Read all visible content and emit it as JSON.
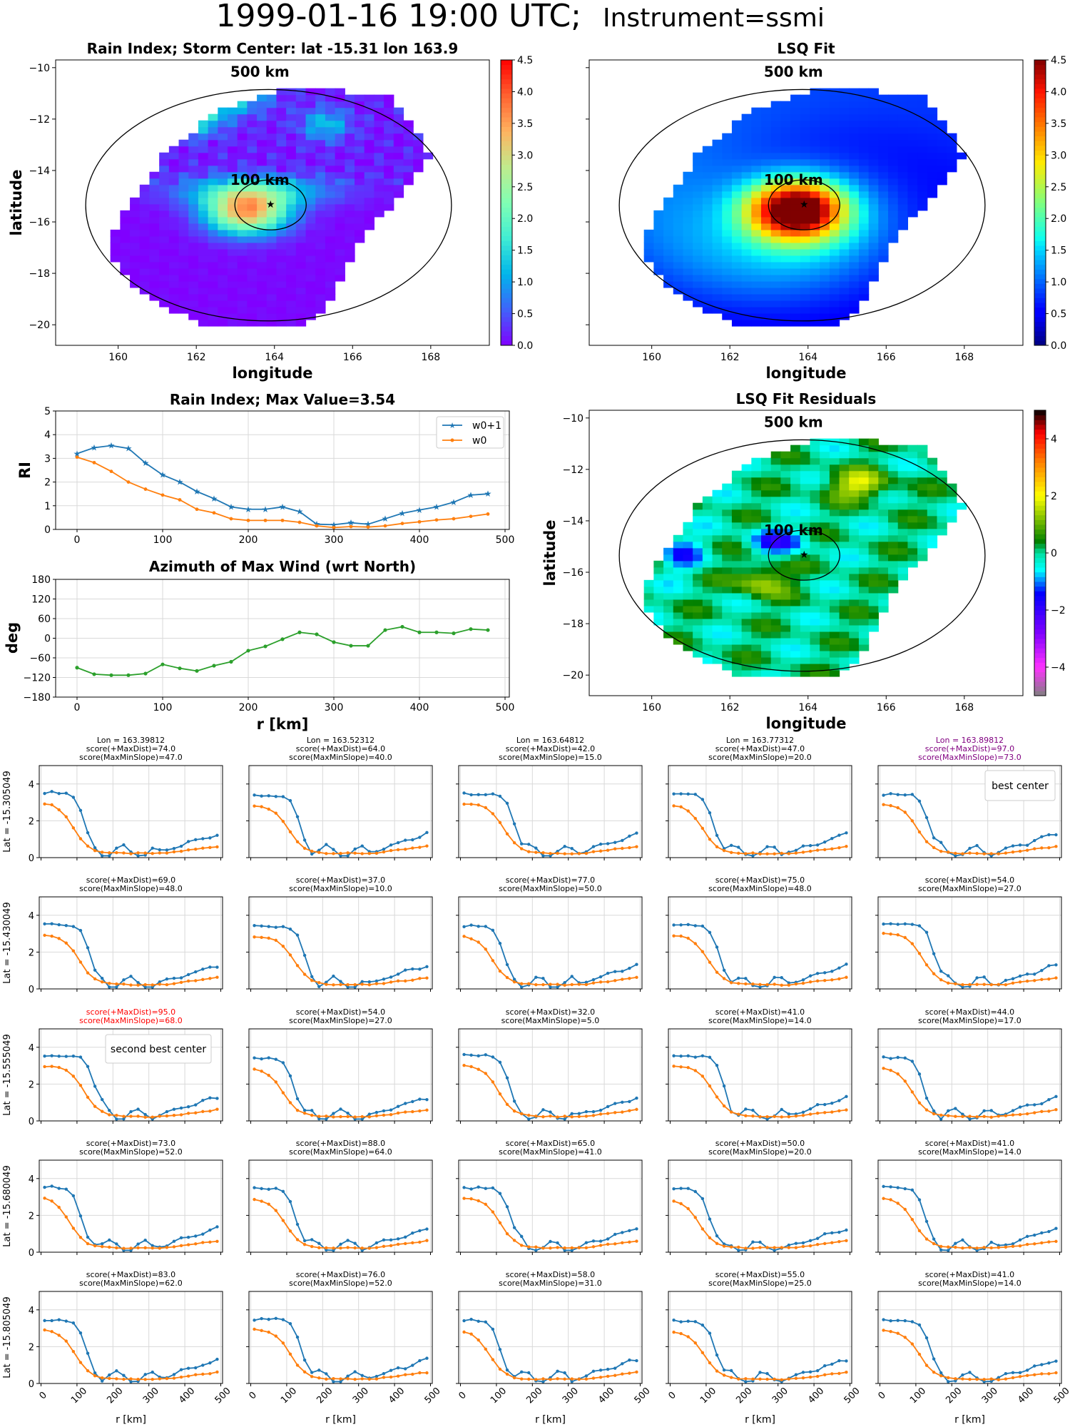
{
  "suptitle": {
    "main": "1999-01-16 19:00 UTC;",
    "instrument": "Instrument=ssmi"
  },
  "colors": {
    "w0p1": "#1f77b4",
    "w0": "#ff7f0e",
    "azimuth": "#2ca02c",
    "best": "#800080",
    "second": "#ff0000",
    "grid": "#d9d9d9"
  },
  "maps": [
    {
      "id": "rain",
      "title": "Rain Index; Storm Center: lat -15.31 lon 163.9",
      "xlabel": "longitude",
      "ylabel": "latitude",
      "xticks": [
        "160",
        "162",
        "164",
        "166",
        "168"
      ],
      "yticks": [
        "−10",
        "−12",
        "−14",
        "−16",
        "−18",
        "−20"
      ],
      "xlim": [
        158.4,
        169.5
      ],
      "ylim": [
        -20.8,
        -9.7
      ],
      "colormap": "rainbow",
      "cbar_ticks": [
        "0.0",
        "0.5",
        "1.0",
        "1.5",
        "2.0",
        "2.5",
        "3.0",
        "3.5",
        "4.0",
        "4.5"
      ],
      "cbar_range": [
        0,
        4.5
      ],
      "ring_labels": [
        "500 km",
        "100 km"
      ],
      "center": {
        "lon": 163.9,
        "lat": -15.31
      }
    },
    {
      "id": "fit",
      "title": "LSQ Fit",
      "xlabel": "longitude",
      "ylabel": "",
      "xticks": [
        "160",
        "162",
        "164",
        "166",
        "168"
      ],
      "yticks": [],
      "xlim": [
        158.4,
        169.5
      ],
      "ylim": [
        -20.8,
        -9.7
      ],
      "colormap": "jet",
      "cbar_ticks": [
        "0.0",
        "0.5",
        "1.0",
        "1.5",
        "2.0",
        "2.5",
        "3.0",
        "3.5",
        "4.0",
        "4.5"
      ],
      "cbar_range": [
        0,
        4.5
      ],
      "ring_labels": [
        "500 km",
        "100 km"
      ],
      "center": {
        "lon": 163.9,
        "lat": -15.31
      }
    },
    {
      "id": "resid",
      "title": "LSQ Fit Residuals",
      "xlabel": "longitude",
      "ylabel": "latitude",
      "xticks": [
        "160",
        "162",
        "164",
        "166",
        "168"
      ],
      "yticks": [
        "−10",
        "−12",
        "−14",
        "−16",
        "−18",
        "−20"
      ],
      "xlim": [
        158.4,
        169.5
      ],
      "ylim": [
        -20.8,
        -9.7
      ],
      "colormap": "diverging",
      "cbar_ticks": [
        "4",
        "2",
        "0",
        "−2",
        "−4"
      ],
      "cbar_range": [
        -5,
        5
      ],
      "ring_labels": [
        "500 km",
        "100 km"
      ],
      "center": {
        "lon": 163.9,
        "lat": -15.31
      }
    }
  ],
  "rain_profile": {
    "title": "Rain Index; Max Value=3.54",
    "ylabel": "RI",
    "xticks": [
      "0",
      "100",
      "200",
      "300",
      "400",
      "500"
    ],
    "yticks": [
      "0",
      "1",
      "2",
      "3",
      "4",
      "5"
    ],
    "xlim": [
      -25,
      505
    ],
    "ylim": [
      0,
      5
    ],
    "legend": [
      "w0+1",
      "w0"
    ],
    "x": [
      0,
      20,
      40,
      60,
      80,
      100,
      120,
      140,
      160,
      180,
      200,
      220,
      240,
      260,
      280,
      300,
      320,
      340,
      360,
      380,
      400,
      420,
      440,
      460,
      480
    ],
    "w0p1": [
      3.2,
      3.45,
      3.54,
      3.42,
      2.8,
      2.3,
      2.0,
      1.6,
      1.3,
      0.95,
      0.85,
      0.85,
      0.95,
      0.75,
      0.22,
      0.2,
      0.28,
      0.22,
      0.45,
      0.68,
      0.82,
      0.95,
      1.15,
      1.45,
      1.5
    ],
    "w0": [
      3.05,
      2.82,
      2.45,
      2.0,
      1.7,
      1.45,
      1.25,
      0.85,
      0.7,
      0.45,
      0.38,
      0.38,
      0.38,
      0.3,
      0.15,
      0.08,
      0.12,
      0.1,
      0.15,
      0.25,
      0.32,
      0.4,
      0.45,
      0.55,
      0.65
    ]
  },
  "azimuth": {
    "title": "Azimuth of Max Wind (wrt North)",
    "ylabel": "deg",
    "xlabel": "r [km]",
    "xticks": [
      "0",
      "100",
      "200",
      "300",
      "400",
      "500"
    ],
    "yticks": [
      "180",
      "120",
      "60",
      "0",
      "−60",
      "−120",
      "−180"
    ],
    "xlim": [
      -25,
      505
    ],
    "ylim": [
      -180,
      180
    ],
    "x": [
      0,
      20,
      40,
      60,
      80,
      100,
      120,
      140,
      160,
      180,
      200,
      220,
      240,
      260,
      280,
      300,
      320,
      340,
      360,
      380,
      400,
      420,
      440,
      460,
      480
    ],
    "y": [
      -90,
      -110,
      -113,
      -113,
      -108,
      -80,
      -92,
      -100,
      -84,
      -72,
      -38,
      -25,
      -3,
      18,
      12,
      -12,
      -23,
      -23,
      25,
      35,
      18,
      18,
      15,
      28,
      25
    ]
  },
  "grid": {
    "lat_labels": [
      "Lat = -15.305049",
      "Lat = -15.430049",
      "Lat = -15.555049",
      "Lat = -15.680049",
      "Lat = -15.805049"
    ],
    "lon_labels": [
      "Lon = 163.39812",
      "Lon = 163.52312",
      "Lon = 163.64812",
      "Lon = 163.77312",
      "Lon = 163.89812"
    ],
    "xlabel": "r [km]",
    "xticks": [
      "0",
      "100",
      "200",
      "300",
      "400",
      "500"
    ],
    "yticks": [
      "0",
      "2",
      "4"
    ],
    "xlim": [
      -5,
      505
    ],
    "ylim": [
      0,
      5
    ],
    "best_label": "best center",
    "second_label": "second best center",
    "scores": [
      [
        [
          "score(+MaxDist)=74.0",
          "score(MaxMinSlope)=47.0"
        ],
        [
          "score(+MaxDist)=64.0",
          "score(MaxMinSlope)=40.0"
        ],
        [
          "score(+MaxDist)=42.0",
          "score(MaxMinSlope)=15.0"
        ],
        [
          "score(+MaxDist)=47.0",
          "score(MaxMinSlope)=20.0"
        ],
        [
          "score(+MaxDist)=97.0",
          "score(MaxMinSlope)=73.0"
        ]
      ],
      [
        [
          "score(+MaxDist)=69.0",
          "score(MaxMinSlope)=48.0"
        ],
        [
          "score(+MaxDist)=37.0",
          "score(MaxMinSlope)=10.0"
        ],
        [
          "score(+MaxDist)=77.0",
          "score(MaxMinSlope)=50.0"
        ],
        [
          "score(+MaxDist)=75.0",
          "score(MaxMinSlope)=48.0"
        ],
        [
          "score(+MaxDist)=54.0",
          "score(MaxMinSlope)=27.0"
        ]
      ],
      [
        [
          "score(+MaxDist)=95.0",
          "score(MaxMinSlope)=68.0"
        ],
        [
          "score(+MaxDist)=54.0",
          "score(MaxMinSlope)=27.0"
        ],
        [
          "score(+MaxDist)=32.0",
          "score(MaxMinSlope)=5.0"
        ],
        [
          "score(+MaxDist)=41.0",
          "score(MaxMinSlope)=14.0"
        ],
        [
          "score(+MaxDist)=44.0",
          "score(MaxMinSlope)=17.0"
        ]
      ],
      [
        [
          "score(+MaxDist)=73.0",
          "score(MaxMinSlope)=52.0"
        ],
        [
          "score(+MaxDist)=88.0",
          "score(MaxMinSlope)=64.0"
        ],
        [
          "score(+MaxDist)=65.0",
          "score(MaxMinSlope)=41.0"
        ],
        [
          "score(+MaxDist)=50.0",
          "score(MaxMinSlope)=20.0"
        ],
        [
          "score(+MaxDist)=41.0",
          "score(MaxMinSlope)=14.0"
        ]
      ],
      [
        [
          "score(+MaxDist)=83.0",
          "score(MaxMinSlope)=62.0"
        ],
        [
          "score(+MaxDist)=76.0",
          "score(MaxMinSlope)=52.0"
        ],
        [
          "score(+MaxDist)=58.0",
          "score(MaxMinSlope)=31.0"
        ],
        [
          "score(+MaxDist)=55.0",
          "score(MaxMinSlope)=25.0"
        ],
        [
          "score(+MaxDist)=41.0",
          "score(MaxMinSlope)=14.0"
        ]
      ]
    ]
  },
  "chart_data": [
    {
      "type": "line",
      "title": "Rain Index; Max Value=3.54",
      "ylabel": "RI",
      "xlabel": "",
      "x": [
        0,
        20,
        40,
        60,
        80,
        100,
        120,
        140,
        160,
        180,
        200,
        220,
        240,
        260,
        280,
        300,
        320,
        340,
        360,
        380,
        400,
        420,
        440,
        460,
        480
      ],
      "series": [
        {
          "name": "w0+1",
          "values": [
            3.2,
            3.45,
            3.54,
            3.42,
            2.8,
            2.3,
            2.0,
            1.6,
            1.3,
            0.95,
            0.85,
            0.85,
            0.95,
            0.75,
            0.22,
            0.2,
            0.28,
            0.22,
            0.45,
            0.68,
            0.82,
            0.95,
            1.15,
            1.45,
            1.5
          ]
        },
        {
          "name": "w0",
          "values": [
            3.05,
            2.82,
            2.45,
            2.0,
            1.7,
            1.45,
            1.25,
            0.85,
            0.7,
            0.45,
            0.38,
            0.38,
            0.38,
            0.3,
            0.15,
            0.08,
            0.12,
            0.1,
            0.15,
            0.25,
            0.32,
            0.4,
            0.45,
            0.55,
            0.65
          ]
        }
      ],
      "ylim": [
        0,
        5
      ],
      "legend": "top-right",
      "grid": true
    },
    {
      "type": "line",
      "title": "Azimuth of Max Wind (wrt North)",
      "ylabel": "deg",
      "xlabel": "r [km]",
      "x": [
        0,
        20,
        40,
        60,
        80,
        100,
        120,
        140,
        160,
        180,
        200,
        220,
        240,
        260,
        280,
        300,
        320,
        340,
        360,
        380,
        400,
        420,
        440,
        460,
        480
      ],
      "series": [
        {
          "values": [
            -90,
            -110,
            -113,
            -113,
            -108,
            -80,
            -92,
            -100,
            -84,
            -72,
            -38,
            -25,
            -3,
            18,
            12,
            -12,
            -23,
            -23,
            25,
            35,
            18,
            18,
            15,
            28,
            25
          ]
        }
      ],
      "ylim": [
        -180,
        180
      ],
      "grid": true
    },
    {
      "type": "heatmap",
      "title": "Rain Index; Storm Center: lat -15.31 lon 163.9",
      "xlabel": "longitude",
      "ylabel": "latitude",
      "xlim": [
        158.4,
        169.5
      ],
      "ylim": [
        -20.8,
        -9.7
      ],
      "colorbar_range": [
        0,
        4.5
      ],
      "storm_center": {
        "lat": -15.31,
        "lon": 163.9
      },
      "max_value": 3.54
    },
    {
      "type": "heatmap",
      "title": "LSQ Fit",
      "xlabel": "longitude",
      "xlim": [
        158.4,
        169.5
      ],
      "ylim": [
        -20.8,
        -9.7
      ],
      "colorbar_range": [
        0,
        4.5
      ]
    },
    {
      "type": "heatmap",
      "title": "LSQ Fit Residuals",
      "xlabel": "longitude",
      "ylabel": "latitude",
      "xlim": [
        158.4,
        169.5
      ],
      "ylim": [
        -20.8,
        -9.7
      ],
      "colorbar_range": [
        -5,
        5
      ]
    }
  ]
}
